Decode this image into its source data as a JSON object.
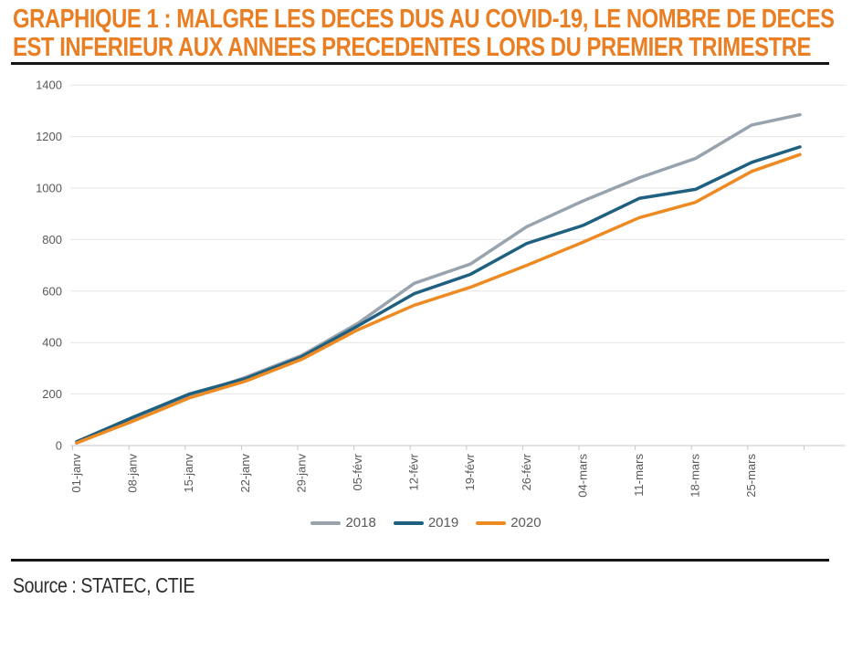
{
  "title": {
    "line1": "GRAPHIQUE 1 : MALGRE LES DECES DUS AU COVID-19, LE NOMBRE DE DECES",
    "line2": "EST INFERIEUR AUX ANNEES PRECEDENTES LORS DU PREMIER TRIMESTRE"
  },
  "source": "Source : STATEC, CTIE",
  "colors": {
    "title_orange": "#E97E23",
    "grid": "#e4e4e4",
    "axis": "#c6c6c6",
    "tick_label": "#595959",
    "rule_black": "#161616"
  },
  "chart_data": {
    "type": "line",
    "title": "",
    "xlabel": "",
    "ylabel": "",
    "ylim": [
      0,
      1400
    ],
    "y_ticks": [
      0,
      200,
      400,
      600,
      800,
      1000,
      1200,
      1400
    ],
    "grid": "horizontal",
    "legend_position": "bottom",
    "x_tick_labels": [
      "01-janv",
      "08-janv",
      "15-janv",
      "22-janv",
      "29-janv",
      "05-févr",
      "12-févr",
      "19-févr",
      "26-févr",
      "04-mars",
      "11-mars",
      "18-mars",
      "25-mars"
    ],
    "x_tick_days": [
      1,
      8,
      15,
      22,
      29,
      36,
      43,
      50,
      57,
      64,
      71,
      78,
      85
    ],
    "anchor_days": [
      1,
      8,
      15,
      22,
      29,
      36,
      43,
      50,
      57,
      64,
      71,
      78,
      85,
      91
    ],
    "series": [
      {
        "name": "2018",
        "color": "#99A3AE",
        "values": [
          10,
          100,
          190,
          265,
          350,
          475,
          630,
          705,
          850,
          950,
          1040,
          1115,
          1245,
          1285
        ]
      },
      {
        "name": "2019",
        "color": "#1F6080",
        "values": [
          15,
          110,
          200,
          260,
          345,
          465,
          590,
          665,
          785,
          855,
          960,
          995,
          1100,
          1160
        ]
      },
      {
        "name": "2020",
        "color": "#EE8A22",
        "values": [
          10,
          95,
          185,
          250,
          335,
          450,
          545,
          615,
          700,
          790,
          885,
          945,
          1065,
          1130
        ]
      }
    ]
  }
}
